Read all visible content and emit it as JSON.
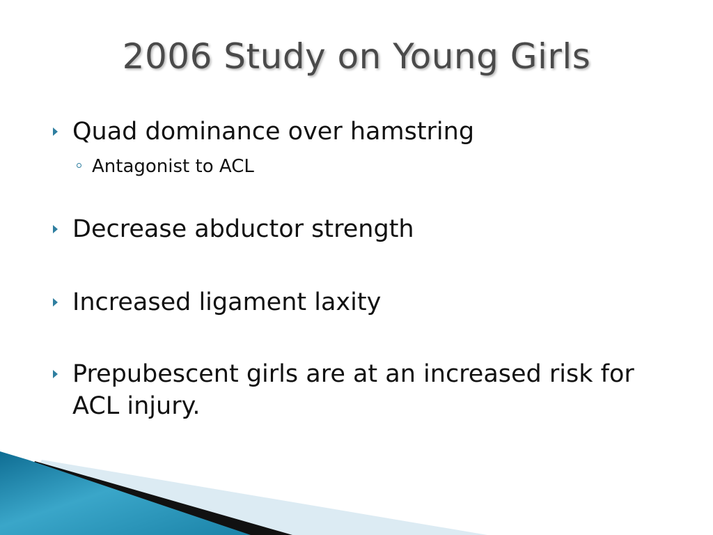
{
  "slide": {
    "title": "2006 Study on Young Girls",
    "bullets": [
      {
        "text": "Quad dominance over hamstring",
        "sub": [
          "Antagonist to ACL"
        ]
      },
      {
        "text": "Decrease abductor strength"
      },
      {
        "text": "Increased ligament laxity"
      },
      {
        "text": "Prepubescent girls are at an increased risk for ACL injury."
      }
    ]
  },
  "theme": {
    "title_color": "#4a4a4a",
    "bullet_color": "#2f7fa0",
    "accent_teal": "#1a7fa3",
    "accent_light": "#d8e9f1",
    "accent_black": "#111111",
    "bullet_icon": "triangle-right-icon",
    "sub_bullet_icon": "circle-outline-icon"
  }
}
